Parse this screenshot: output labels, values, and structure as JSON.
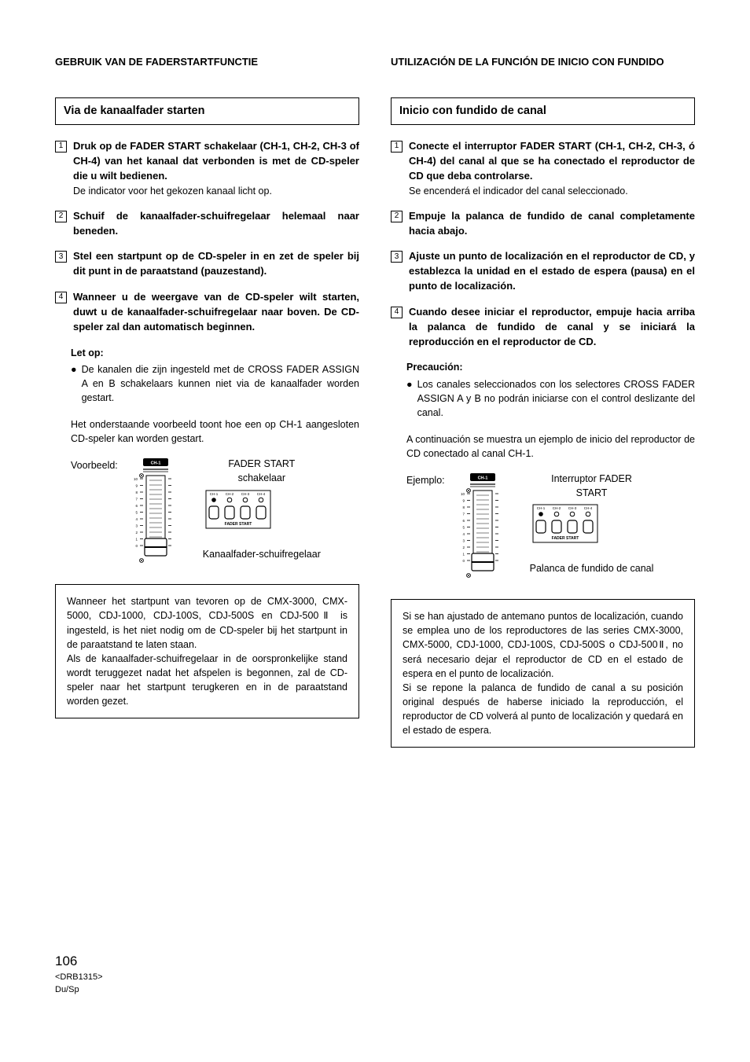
{
  "left": {
    "topcaps": "GEBRUIK VAN DE FADERSTARTFUNCTIE",
    "heading": "Via de kanaalfader starten",
    "steps": [
      {
        "num": "1",
        "bold": "Druk op de FADER START schakelaar (CH-1, CH-2, CH-3 of CH-4) van het kanaal dat verbonden is met de CD-speler die u wilt bedienen.",
        "light": "De indicator voor het gekozen kanaal licht op."
      },
      {
        "num": "2",
        "bold": "Schuif de kanaalfader-schuifregelaar helemaal naar beneden.",
        "light": ""
      },
      {
        "num": "3",
        "bold": "Stel een startpunt op de CD-speler in en zet de speler bij dit punt in de paraatstand (pauzestand).",
        "light": ""
      },
      {
        "num": "4",
        "bold": "Wanneer u de weergave van de CD-speler wilt starten, duwt u de kanaalfader-schuifregelaar naar boven. De CD-speler zal dan automatisch beginnen.",
        "light": ""
      }
    ],
    "note_title": "Let op:",
    "note_bullet": "De kanalen die zijn ingesteld met de CROSS FADER ASSIGN A en B schakelaars kunnen niet via de kanaalfader worden gestart.",
    "plain": "Het onderstaande voorbeeld toont hoe een op CH-1 aangesloten CD-speler kan worden gestart.",
    "example_label": "Voorbeeld:",
    "fader_label_top": "FADER START",
    "fader_label_bottom": "schakelaar",
    "slider_label": "Kanaalfader-schuifregelaar",
    "box": "Wanneer het startpunt van tevoren op de CMX-3000, CMX-5000, CDJ-1000, CDJ-100S, CDJ-500S en CDJ-500Ⅱ is ingesteld, is het niet nodig om de CD-speler bij het startpunt in de paraatstand te laten staan.\nAls de kanaalfader-schuifregelaar in de oorspronkelijke stand wordt teruggezet nadat het afspelen is begonnen, zal de CD-speler naar het startpunt terugkeren en in de paraatstand worden gezet."
  },
  "right": {
    "topcaps": "UTILIZACIÓN DE LA FUNCIÓN DE INICIO CON FUNDIDO",
    "heading": "Inicio con fundido de canal",
    "steps": [
      {
        "num": "1",
        "bold": "Conecte el interruptor FADER START (CH-1, CH-2, CH-3, ó CH-4) del canal al que se ha conectado el reproductor de CD que deba controlarse.",
        "light": "Se encenderá el indicador del canal seleccionado."
      },
      {
        "num": "2",
        "bold": "Empuje la palanca de fundido de canal completamente hacia abajo.",
        "light": ""
      },
      {
        "num": "3",
        "bold": "Ajuste un punto de localización en el reproductor de CD, y establezca la unidad en el estado de espera (pausa) en el punto de localización.",
        "light": ""
      },
      {
        "num": "4",
        "bold": "Cuando desee iniciar el reproductor, empuje hacia arriba la palanca de fundido de canal y se iniciará la reproducción en el reproductor de CD.",
        "light": ""
      }
    ],
    "note_title": "Precaución:",
    "note_bullet": "Los canales seleccionados con los selectores CROSS FADER ASSIGN A y B no podrán iniciarse con el control deslizante del canal.",
    "plain": "A continuación se muestra un ejemplo de inicio del reproductor de CD conectado al canal CH-1.",
    "example_label": "Ejemplo:",
    "fader_label_top": "Interruptor FADER",
    "fader_label_bottom": "START",
    "slider_label": "Palanca de fundido de canal",
    "box": "Si se han ajustado de antemano puntos de localización, cuando se emplea uno de los reproductores de las series CMX-3000, CMX-5000, CDJ-1000, CDJ-100S, CDJ-500S o CDJ-500Ⅱ, no será necesario dejar el reproductor de CD en el estado de espera en el punto de localización.\nSi se repone la palanca de fundido de canal a su posición original después de haberse iniciado la reproducción, el reproductor de CD volverá al punto de localización y quedará en el estado de espera."
  },
  "footer": {
    "pagenum": "106",
    "ref": "<DRB1315>",
    "lang": "Du/Sp"
  },
  "diagram": {
    "slider_ch": "CH-1",
    "switch_labels": [
      "CH-1",
      "CH-2",
      "CH-3",
      "CH-4"
    ],
    "switch_caption": "FADER START",
    "scale_numbers": [
      "10",
      "9",
      "8",
      "7",
      "6",
      "5",
      "4",
      "3",
      "2",
      "1",
      "0"
    ]
  }
}
